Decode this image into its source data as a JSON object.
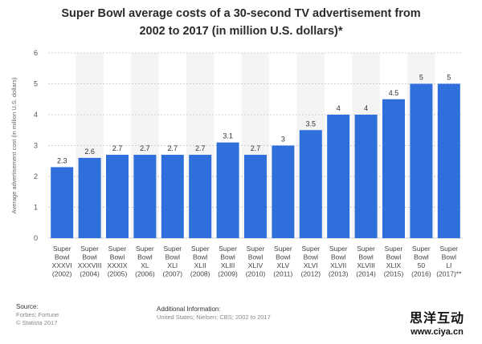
{
  "chart_data": {
    "type": "bar",
    "title_lines": [
      "Super Bowl average costs of a 30-second TV advertisement from",
      "2002 to 2017 (in million U.S. dollars)*"
    ],
    "ylabel": "Average advertisement cost (in million U.S. dollars)",
    "xlabel": "",
    "ylim": [
      0,
      6
    ],
    "yticks": [
      0,
      1,
      2,
      3,
      4,
      5,
      6
    ],
    "grid": true,
    "bar_color": "#2e6fdc",
    "categories": [
      [
        "Super",
        "Bowl",
        "XXXVI",
        "(2002)"
      ],
      [
        "Super",
        "Bowl",
        "XXXVIII",
        "(2004)"
      ],
      [
        "Super",
        "Bowl",
        "XXXIX",
        "(2005)"
      ],
      [
        "Super",
        "Bowl",
        "XL",
        "(2006)"
      ],
      [
        "Super",
        "Bowl",
        "XLI",
        "(2007)"
      ],
      [
        "Super",
        "Bowl",
        "XLII",
        "(2008)"
      ],
      [
        "Super",
        "Bowl",
        "XLIII",
        "(2009)"
      ],
      [
        "Super",
        "Bowl",
        "XLIV",
        "(2010)"
      ],
      [
        "Super",
        "Bowl",
        "XLV",
        "(2011)"
      ],
      [
        "Super",
        "Bowl",
        "XLVI",
        "(2012)"
      ],
      [
        "Super",
        "Bowl",
        "XLVII",
        "(2013)"
      ],
      [
        "Super",
        "Bowl",
        "XLVIII",
        "(2014)"
      ],
      [
        "Super",
        "Bowl",
        "XLIX",
        "(2015)"
      ],
      [
        "Super",
        "Bowl",
        "50",
        "(2016)"
      ],
      [
        "Super",
        "Bowl",
        "LI",
        "(2017)**"
      ]
    ],
    "values": [
      2.3,
      2.6,
      2.7,
      2.7,
      2.7,
      2.7,
      3.1,
      2.7,
      3,
      3.5,
      4,
      4,
      4.5,
      5,
      5
    ],
    "value_labels": [
      "2.3",
      "2.6",
      "2.7",
      "2.7",
      "2.7",
      "2.7",
      "3.1",
      "2.7",
      "3",
      "3.5",
      "4",
      "4",
      "4.5",
      "5",
      "5"
    ]
  },
  "footer": {
    "source_heading": "Source:",
    "source_line1": "Forbes; Fortune",
    "source_line2": "© Statista 2017",
    "info_heading": "Additional Information:",
    "info_line": "United States; Nielsen; CBS; 2002 to 2017"
  },
  "watermark": {
    "chinese": "思洋互动",
    "url": "www.ciya.cn"
  }
}
